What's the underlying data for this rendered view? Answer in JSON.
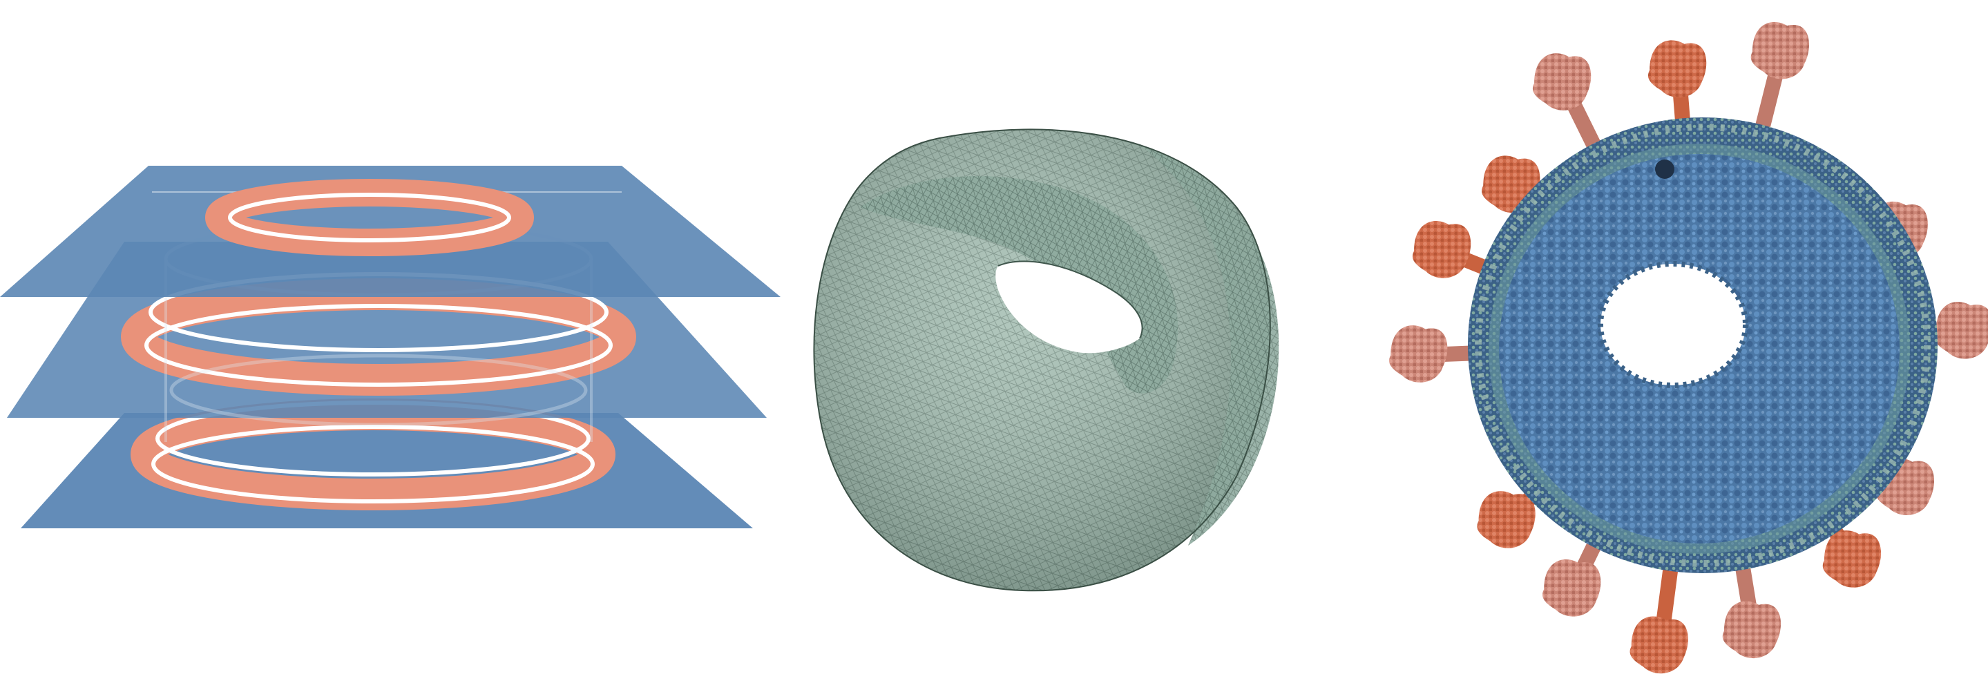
{
  "figure": {
    "panels": [
      {
        "id": "panel-slices",
        "kind": "stacked cross-section slices with ring contours"
      },
      {
        "id": "panel-mesh",
        "kind": "triangulated vesicle surface mesh"
      },
      {
        "id": "panel-molecular",
        "kind": "molecular vesicle model with protruding proteins"
      }
    ]
  },
  "colors": {
    "slice_blue": "#5b86b4",
    "ring_salmon": "#e9927a",
    "contour_white": "#ffffff",
    "mesh_green": "#9fb9ad",
    "mesh_line": "#3f564c",
    "lipid_blue": "#4a77a8",
    "lipid_dark": "#2f4f72",
    "protein_orange": "#d56a48",
    "protein_pink": "#cf8779"
  }
}
